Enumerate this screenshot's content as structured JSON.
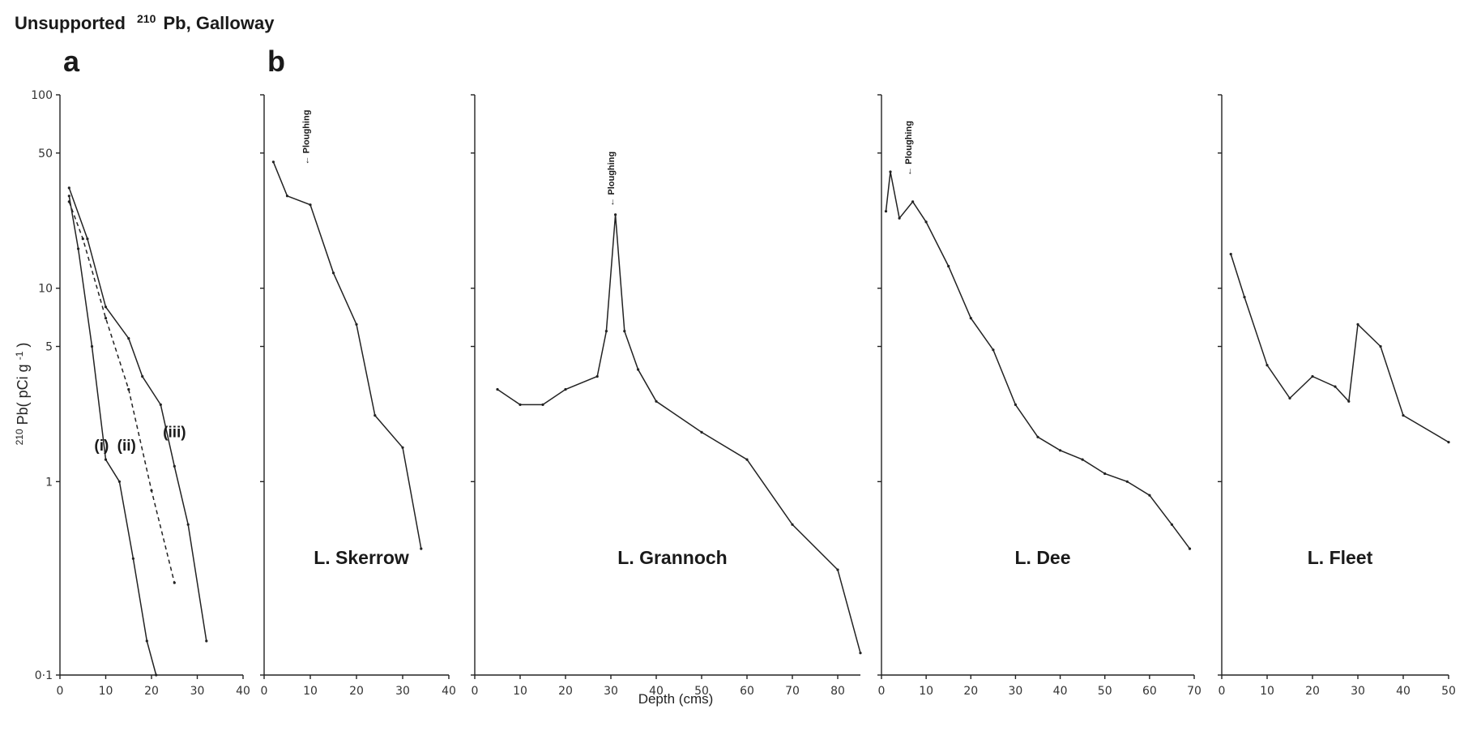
{
  "header": {
    "title_prefix": "Unsupported",
    "title_sup": "210",
    "title_suffix": "Pb, Galloway",
    "panel_a": "a",
    "panel_b": "b"
  },
  "ylabel": {
    "sup": "210",
    "main": "Pb( pCi  g",
    "sup2": "-1",
    "close": ")"
  },
  "xlabel": "Depth (cms)",
  "chart_data": [
    {
      "type": "line",
      "id": "a",
      "title": "",
      "xlabel": "Depth (cms)",
      "ylabel": "210Pb( pCi g-1)",
      "xlim": [
        0,
        40
      ],
      "ylim": [
        0.1,
        100
      ],
      "yscale": "log",
      "xticks": [
        0,
        10,
        20,
        30,
        40
      ],
      "yticks": [
        0.1,
        1,
        5,
        10,
        50,
        100
      ],
      "ytick_labels": [
        "0·1",
        "1",
        "5",
        "10",
        "50",
        "100"
      ],
      "series": [
        {
          "name": "(i)",
          "label_x": 7.5,
          "label_y": 1.45,
          "style": "solid",
          "x": [
            2,
            4,
            7,
            10,
            13,
            16,
            19,
            21
          ],
          "y": [
            30,
            16,
            5,
            1.3,
            1.0,
            0.4,
            0.15,
            0.1
          ]
        },
        {
          "name": "(ii)",
          "label_x": 12.5,
          "label_y": 1.45,
          "style": "dashed",
          "x": [
            2,
            5,
            10,
            15,
            20,
            25
          ],
          "y": [
            28,
            18,
            7,
            3,
            0.9,
            0.3
          ]
        },
        {
          "name": "(iii)",
          "label_x": 22.5,
          "label_y": 1.7,
          "style": "solid",
          "x": [
            2,
            6,
            10,
            15,
            18,
            22,
            25,
            28,
            32
          ],
          "y": [
            33,
            18,
            8,
            5.5,
            3.5,
            2.5,
            1.2,
            0.6,
            0.15
          ]
        }
      ]
    },
    {
      "type": "line",
      "id": "skerrow",
      "title": "L. Skerrow",
      "xlim": [
        0,
        40
      ],
      "ylim": [
        0.1,
        100
      ],
      "yscale": "log",
      "xticks": [
        0,
        10,
        20,
        30,
        40
      ],
      "annotation": {
        "text": "Ploughing",
        "x": 9,
        "y": 41
      },
      "series": [
        {
          "x": [
            2,
            5,
            10,
            15,
            20,
            24,
            30,
            34
          ],
          "y": [
            45,
            30,
            27,
            12,
            6.5,
            2.2,
            1.5,
            0.45
          ]
        }
      ]
    },
    {
      "type": "line",
      "id": "grannoch",
      "title": "L. Grannoch",
      "xlim": [
        0,
        85
      ],
      "ylim": [
        0.1,
        100
      ],
      "yscale": "log",
      "xticks": [
        0,
        10,
        20,
        30,
        40,
        50,
        60,
        70,
        80
      ],
      "annotation": {
        "text": "Ploughing",
        "x": 30,
        "y": 25
      },
      "series": [
        {
          "x": [
            5,
            10,
            15,
            20,
            27,
            29,
            31,
            33,
            36,
            40,
            50,
            60,
            70,
            80,
            85
          ],
          "y": [
            3.0,
            2.5,
            2.5,
            3.0,
            3.5,
            6,
            24,
            6,
            3.8,
            2.6,
            1.8,
            1.3,
            0.6,
            0.35,
            0.13
          ]
        }
      ]
    },
    {
      "type": "line",
      "id": "dee",
      "title": "L. Dee",
      "xlim": [
        0,
        70
      ],
      "ylim": [
        0.1,
        100
      ],
      "yscale": "log",
      "xticks": [
        0,
        10,
        20,
        30,
        40,
        50,
        60,
        70
      ],
      "annotation": {
        "text": "Ploughing",
        "x": 6,
        "y": 36
      },
      "series": [
        {
          "x": [
            1,
            2,
            4,
            7,
            10,
            15,
            20,
            25,
            30,
            35,
            40,
            45,
            50,
            55,
            60,
            65,
            69
          ],
          "y": [
            25,
            40,
            23,
            28,
            22,
            13,
            7,
            4.8,
            2.5,
            1.7,
            1.45,
            1.3,
            1.1,
            1.0,
            0.85,
            0.6,
            0.45
          ]
        }
      ]
    },
    {
      "type": "line",
      "id": "fleet",
      "title": "L. Fleet",
      "xlim": [
        0,
        50
      ],
      "ylim": [
        0.1,
        100
      ],
      "yscale": "log",
      "xticks": [
        0,
        10,
        20,
        30,
        40,
        50
      ],
      "series": [
        {
          "x": [
            2,
            5,
            10,
            15,
            20,
            25,
            28,
            30,
            35,
            40,
            50
          ],
          "y": [
            15,
            9,
            4,
            2.7,
            3.5,
            3.1,
            2.6,
            6.5,
            5.0,
            2.2,
            1.6
          ]
        }
      ]
    }
  ]
}
